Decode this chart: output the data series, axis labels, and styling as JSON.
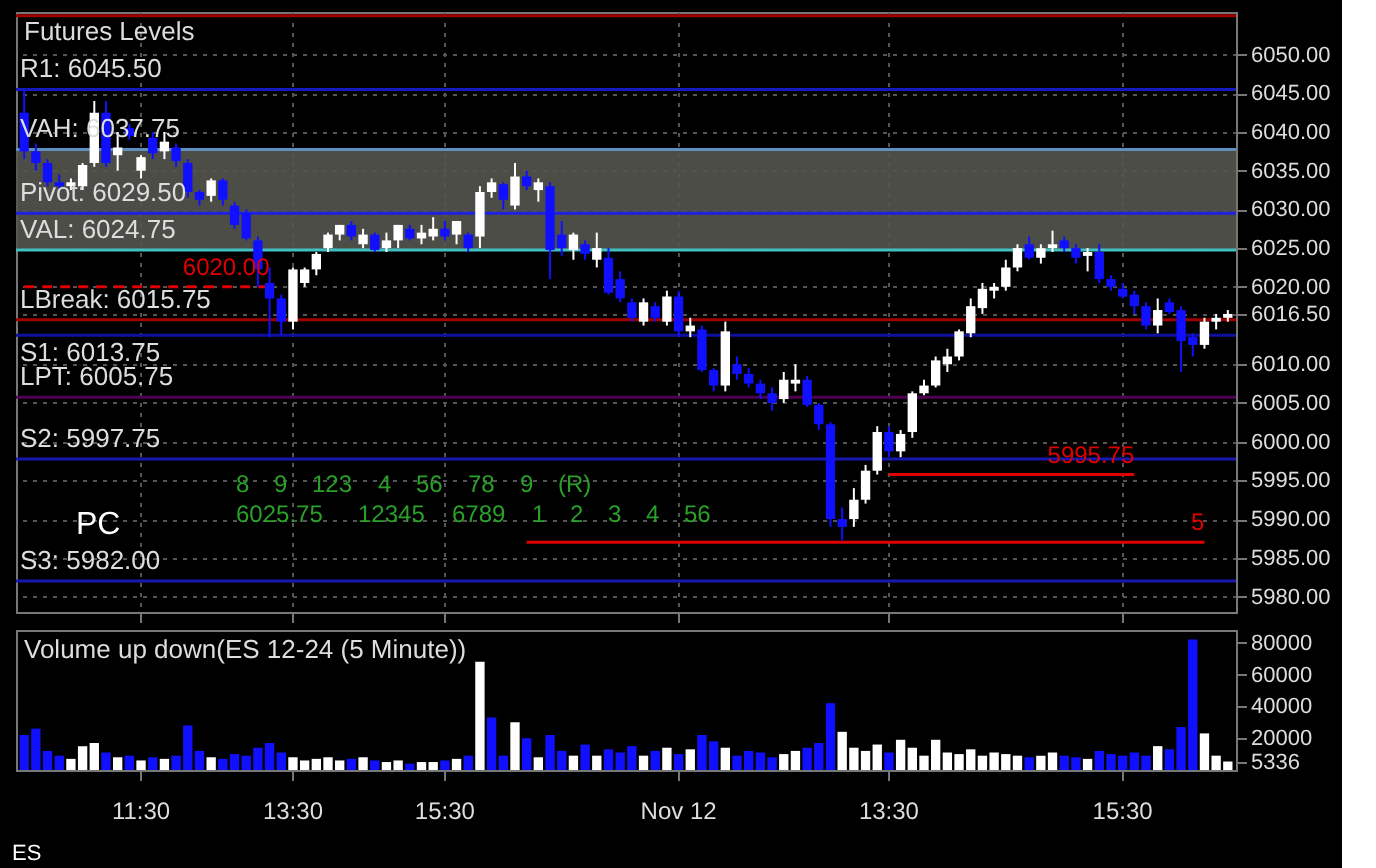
{
  "chart_data": [
    {
      "type": "candlestick",
      "title": "Futures Levels",
      "categories": [
        null,
        null,
        null,
        null,
        null,
        null,
        null,
        null,
        null,
        null,
        null,
        null,
        null,
        null,
        null,
        null,
        null,
        null,
        null,
        null,
        null,
        null,
        null,
        null,
        null,
        null,
        null,
        null,
        null,
        null,
        null,
        null,
        null,
        null,
        null,
        null,
        null,
        null,
        null,
        null,
        null,
        null,
        null,
        null,
        null,
        null,
        null,
        null,
        null,
        null,
        null,
        null,
        null,
        null,
        null,
        null,
        null,
        null,
        null,
        null,
        null,
        null,
        null,
        null,
        null,
        null,
        null,
        null,
        null,
        null,
        null,
        null,
        null,
        null,
        null,
        null,
        null,
        null,
        null,
        null,
        null,
        null,
        null,
        null,
        null,
        null,
        null,
        null,
        null,
        null,
        null,
        null,
        null,
        null,
        null,
        null,
        null,
        null,
        null,
        null,
        null,
        null,
        null,
        null
      ],
      "ohlc": [
        [
          6042.5,
          6045.5,
          6036.5,
          6037.5
        ],
        [
          6037.5,
          6038.5,
          6035,
          6036
        ],
        [
          6036,
          6036.5,
          6033,
          6033.5
        ],
        [
          6033.5,
          6034.5,
          6032.5,
          6033
        ],
        [
          6033,
          6034,
          6032.5,
          6033.5
        ],
        [
          6033,
          6036,
          6032.5,
          6035.75
        ],
        [
          6036,
          6044,
          6035.5,
          6042.5
        ],
        [
          6042.5,
          6044,
          6035.5,
          6036
        ],
        [
          6037,
          6040,
          6035,
          6038
        ],
        [
          6040.5,
          6041,
          6039,
          6039.5
        ],
        [
          6035,
          6037,
          6034,
          6036.75
        ],
        [
          6039.25,
          6040,
          6036.5,
          6037.25
        ],
        [
          6037.5,
          6040,
          6036.5,
          6038.75
        ],
        [
          6038,
          6038.5,
          6035.5,
          6036.25
        ],
        [
          6036,
          6036.5,
          6031.5,
          6032.25
        ],
        [
          6032.25,
          6032.5,
          6030.5,
          6031.25
        ],
        [
          6031.75,
          6034,
          6031,
          6033.75
        ],
        [
          6033.75,
          6034,
          6030.5,
          6031.25
        ],
        [
          6030.5,
          6031,
          6027.5,
          6028
        ],
        [
          6029.5,
          6030,
          6026,
          6026.25
        ],
        [
          6026,
          6026.5,
          6020,
          6022.25
        ],
        [
          6020.5,
          6022.5,
          6013.5,
          6018.5
        ],
        [
          6018.5,
          6019,
          6013.75,
          6015.5
        ],
        [
          6015.5,
          6022.5,
          6014.5,
          6022.25
        ],
        [
          6020.5,
          6022.5,
          6020,
          6022.25
        ],
        [
          6022.25,
          6024.5,
          6021.5,
          6024.25
        ],
        [
          6025,
          6027,
          6024.5,
          6026.75
        ],
        [
          6026.75,
          6028,
          6026,
          6028
        ],
        [
          6028,
          6028.5,
          6026,
          6026.5
        ],
        [
          6025.5,
          6027.5,
          6025,
          6026.75
        ],
        [
          6026.75,
          6027,
          6024.5,
          6024.75
        ],
        [
          6025,
          6027,
          6024.5,
          6026
        ],
        [
          6026,
          6028,
          6025,
          6028
        ],
        [
          6027.5,
          6028,
          6026,
          6026.25
        ],
        [
          6026.25,
          6028,
          6025.5,
          6027
        ],
        [
          6026.5,
          6029,
          6026,
          6027.5
        ],
        [
          6027.5,
          6028.5,
          6026,
          6026.5
        ],
        [
          6026.75,
          6028.5,
          6025.5,
          6028.5
        ],
        [
          6026.75,
          6027,
          6024.5,
          6025
        ],
        [
          6026.5,
          6033,
          6025,
          6032.25
        ],
        [
          6032.25,
          6034,
          6031.5,
          6033.5
        ],
        [
          6033.25,
          6033.5,
          6030,
          6031.25
        ],
        [
          6030.5,
          6036,
          6030,
          6034.25
        ],
        [
          6034.25,
          6035,
          6032.5,
          6033
        ],
        [
          6032.5,
          6034,
          6031,
          6033.5
        ],
        [
          6033,
          6033.5,
          6021,
          6024.75
        ],
        [
          6026.75,
          6028.5,
          6024,
          6025
        ],
        [
          6024.75,
          6027,
          6023.5,
          6026.75
        ],
        [
          6025.5,
          6026,
          6023.5,
          6024.25
        ],
        [
          6023.5,
          6027,
          6022.5,
          6025
        ],
        [
          6023.75,
          6025,
          6019,
          6019.25
        ],
        [
          6021,
          6022,
          6018,
          6018.5
        ],
        [
          6018,
          6018.5,
          6015.5,
          6016
        ],
        [
          6015.5,
          6018.5,
          6015,
          6018
        ],
        [
          6017.5,
          6018,
          6015.5,
          6016
        ],
        [
          6015.5,
          6019.5,
          6015,
          6018.75
        ],
        [
          6018.75,
          6019.5,
          6013.5,
          6014.25
        ],
        [
          6014.25,
          6016,
          6013.5,
          6015
        ],
        [
          6014.5,
          6015,
          6009,
          6009.25
        ],
        [
          6009.25,
          6009.5,
          6006.5,
          6007.25
        ],
        [
          6007.25,
          6015.5,
          6006.5,
          6014.25
        ],
        [
          6010,
          6011,
          6008,
          6008.75
        ],
        [
          6008.75,
          6009.5,
          6007,
          6007.5
        ],
        [
          6007.5,
          6008,
          6005.5,
          6006.25
        ],
        [
          6006.25,
          6007,
          6004,
          6005
        ],
        [
          6005.5,
          6009,
          6005,
          6008
        ],
        [
          6007.5,
          6010,
          6006.5,
          6008
        ],
        [
          6008,
          6008.5,
          6004.5,
          6004.75
        ],
        [
          6004.75,
          6005,
          6001.5,
          6002.25
        ],
        [
          6002.25,
          6002.5,
          5989,
          5990
        ],
        [
          5990,
          5991.5,
          5987.25,
          5989
        ],
        [
          5990,
          5994,
          5989,
          5992.5
        ],
        [
          5992.5,
          5997,
          5992,
          5996.25
        ],
        [
          5996.25,
          6002,
          5995.75,
          6001.25
        ],
        [
          6001.25,
          6002,
          5998,
          5998.75
        ],
        [
          5998.75,
          6001.5,
          5998,
          6001
        ],
        [
          6001.25,
          6006.5,
          6000.5,
          6006.25
        ],
        [
          6006.25,
          6008,
          6006,
          6007.25
        ],
        [
          6007.25,
          6011,
          6007,
          6010.5
        ],
        [
          6010,
          6012,
          6009,
          6011
        ],
        [
          6011,
          6014.5,
          6010.5,
          6014.25
        ],
        [
          6014,
          6018.5,
          6013.5,
          6017.5
        ],
        [
          6017.25,
          6020.5,
          6016.5,
          6019.75
        ],
        [
          6019.5,
          6020.5,
          6018.5,
          6020
        ],
        [
          6020,
          6023.5,
          6019.5,
          6022.5
        ],
        [
          6022.5,
          6025.5,
          6022,
          6025
        ],
        [
          6025.5,
          6026.5,
          6023.5,
          6023.75
        ],
        [
          6023.75,
          6025.5,
          6023,
          6025
        ],
        [
          6025,
          6027.25,
          6024.5,
          6025.5
        ],
        [
          6026,
          6026.5,
          6024.5,
          6025
        ],
        [
          6025,
          6025.5,
          6023,
          6023.75
        ],
        [
          6024,
          6025,
          6022,
          6024.5
        ],
        [
          6024.5,
          6025.5,
          6020.5,
          6021
        ],
        [
          6021,
          6021.5,
          6019.5,
          6020
        ],
        [
          6019.75,
          6020.5,
          6018.5,
          6018.75
        ],
        [
          6019,
          6019.5,
          6016.5,
          6017.5
        ],
        [
          6017.5,
          6018,
          6014.5,
          6015
        ],
        [
          6015,
          6018.5,
          6014,
          6017
        ],
        [
          6018,
          6018.5,
          6016.5,
          6016.75
        ],
        [
          6017,
          6017.5,
          6009,
          6013
        ],
        [
          6013.5,
          6014,
          6011,
          6012.5
        ],
        [
          6012.5,
          6016,
          6012,
          6015.5
        ],
        [
          6015.5,
          6016.5,
          6014.5,
          6016
        ],
        [
          6016,
          6017,
          6015.5,
          6016.5
        ]
      ],
      "colors": [
        "#1010ff",
        "#1010ff",
        "#1010ff",
        "#1010ff",
        "#ffffff",
        "#ffffff",
        "#ffffff",
        "#1010ff",
        "#ffffff",
        "#1010ff",
        "#ffffff",
        "#1010ff",
        "#ffffff",
        "#1010ff",
        "#1010ff",
        "#1010ff",
        "#ffffff",
        "#1010ff",
        "#1010ff",
        "#1010ff",
        "#1010ff",
        "#1010ff",
        "#1010ff",
        "#ffffff",
        "#ffffff",
        "#ffffff",
        "#ffffff",
        "#ffffff",
        "#1010ff",
        "#ffffff",
        "#1010ff",
        "#ffffff",
        "#ffffff",
        "#1010ff",
        "#ffffff",
        "#ffffff",
        "#1010ff",
        "#ffffff",
        "#1010ff",
        "#ffffff",
        "#ffffff",
        "#1010ff",
        "#ffffff",
        "#1010ff",
        "#ffffff",
        "#1010ff",
        "#1010ff",
        "#ffffff",
        "#1010ff",
        "#ffffff",
        "#1010ff",
        "#1010ff",
        "#1010ff",
        "#ffffff",
        "#1010ff",
        "#ffffff",
        "#1010ff",
        "#ffffff",
        "#1010ff",
        "#1010ff",
        "#ffffff",
        "#1010ff",
        "#1010ff",
        "#1010ff",
        "#1010ff",
        "#ffffff",
        "#ffffff",
        "#1010ff",
        "#1010ff",
        "#1010ff",
        "#1010ff",
        "#ffffff",
        "#ffffff",
        "#ffffff",
        "#1010ff",
        "#ffffff",
        "#ffffff",
        "#ffffff",
        "#ffffff",
        "#ffffff",
        "#ffffff",
        "#ffffff",
        "#ffffff",
        "#ffffff",
        "#ffffff",
        "#ffffff",
        "#1010ff",
        "#ffffff",
        "#ffffff",
        "#1010ff",
        "#1010ff",
        "#ffffff",
        "#1010ff",
        "#1010ff",
        "#1010ff",
        "#1010ff",
        "#1010ff",
        "#ffffff",
        "#1010ff",
        "#1010ff",
        "#1010ff",
        "#ffffff",
        "#ffffff",
        "#ffffff"
      ],
      "ylim": [
        5978,
        6055.5
      ],
      "yticks": [
        {
          "value": 5980,
          "label": "5980.00"
        },
        {
          "value": 5985,
          "label": "5985.00"
        },
        {
          "value": 5990,
          "label": "5990.00"
        },
        {
          "value": 5995,
          "label": "5995.00"
        },
        {
          "value": 6000,
          "label": "6000.00"
        },
        {
          "value": 6005,
          "label": "6005.00"
        },
        {
          "value": 6010,
          "label": "6010.00"
        },
        {
          "value": 6016.5,
          "label": "6016.50"
        },
        {
          "value": 6020,
          "label": "6020.00"
        },
        {
          "value": 6025,
          "label": "6025.00"
        },
        {
          "value": 6030,
          "label": "6030.00"
        },
        {
          "value": 6035,
          "label": "6035.00"
        },
        {
          "value": 6040,
          "label": "6040.00"
        },
        {
          "value": 6045,
          "label": "6045.00"
        },
        {
          "value": 6050,
          "label": "6050.00"
        }
      ],
      "grid": true,
      "tick_labels": "y",
      "bands": [
        {
          "axis": "y",
          "from": 6024.75,
          "to": 6037.75,
          "color": "#55554f"
        }
      ],
      "ref_lines": [
        {
          "axis": "y",
          "value": 6055,
          "color": "#a00000"
        },
        {
          "axis": "y",
          "value": 6045.5,
          "label": "R1: 6045.50",
          "color": "#1818c0"
        },
        {
          "axis": "y",
          "value": 6037.75,
          "label": "VAH: 6037.75",
          "color": "#5f8fbf"
        },
        {
          "axis": "y",
          "value": 6029.5,
          "label": "Pivot: 6029.50",
          "color": "#2020e0"
        },
        {
          "axis": "y",
          "value": 6024.75,
          "label": "VAL: 6024.75",
          "color": "#40c0c0"
        },
        {
          "axis": "y",
          "value": 6015.75,
          "label": "LBreak: 6015.75",
          "color": "#a00000"
        },
        {
          "axis": "y",
          "value": 6013.75,
          "label": "S1: 6013.75",
          "color": "#1010a0"
        },
        {
          "axis": "y",
          "value": 6005.75,
          "label": "LPT: 6005.75",
          "color": "#500050"
        },
        {
          "axis": "y",
          "value": 5997.75,
          "label": "S2: 5997.75",
          "color": "#1818b0"
        },
        {
          "axis": "y",
          "value": 5982,
          "label": "S3: 5982.00",
          "color": "#1818b0"
        }
      ],
      "series": [
        {
          "type": "line",
          "name": "6020.00",
          "color": "#e00000",
          "line_style": "dashed",
          "values": [
            6020,
            6020,
            6020,
            6020,
            6020,
            6020,
            6020,
            6020,
            6020,
            6020,
            6020,
            6020,
            6020,
            6020,
            6020,
            6020,
            6020,
            6020,
            6020,
            6020,
            6020,
            6020,
            null,
            null,
            null,
            null,
            null,
            null,
            null,
            null,
            null,
            null,
            null,
            null,
            null,
            null,
            null,
            null,
            null,
            null,
            null,
            null,
            null,
            null,
            null,
            null,
            null,
            null,
            null,
            null,
            null,
            null,
            null,
            null,
            null,
            null,
            null,
            null,
            null,
            null,
            null,
            null,
            null,
            null,
            null,
            null,
            null,
            null,
            null,
            null,
            null,
            null,
            null,
            null,
            null,
            null,
            null,
            null,
            null,
            null,
            null,
            null,
            null,
            null,
            null,
            null,
            null,
            null,
            null,
            null,
            null,
            null,
            null,
            null,
            null,
            null,
            null,
            null,
            null,
            null,
            null,
            null,
            null,
            null
          ]
        },
        {
          "type": "line",
          "name": "5995.75",
          "color": "#e00000",
          "values": [
            null,
            null,
            null,
            null,
            null,
            null,
            null,
            null,
            null,
            null,
            null,
            null,
            null,
            null,
            null,
            null,
            null,
            null,
            null,
            null,
            null,
            null,
            null,
            null,
            null,
            null,
            null,
            null,
            null,
            null,
            null,
            null,
            null,
            null,
            null,
            null,
            null,
            null,
            null,
            null,
            null,
            null,
            null,
            null,
            null,
            null,
            null,
            null,
            null,
            null,
            null,
            null,
            null,
            null,
            null,
            null,
            null,
            null,
            null,
            null,
            null,
            null,
            null,
            null,
            null,
            null,
            null,
            null,
            null,
            null,
            null,
            null,
            null,
            null,
            5995.75,
            5995.75,
            5995.75,
            5995.75,
            5995.75,
            5995.75,
            5995.75,
            5995.75,
            5995.75,
            5995.75,
            5995.75,
            5995.75,
            5995.75,
            5995.75,
            5995.75,
            5995.75,
            5995.75,
            5995.75,
            5995.75,
            5995.75,
            5995.75,
            5995.75,
            null,
            null,
            null,
            null,
            null,
            null,
            null,
            null
          ]
        },
        {
          "type": "line",
          "name": "5",
          "color": "#e00000",
          "values": [
            null,
            null,
            null,
            null,
            null,
            null,
            null,
            null,
            null,
            null,
            null,
            null,
            null,
            null,
            null,
            null,
            null,
            null,
            null,
            null,
            null,
            null,
            null,
            null,
            null,
            null,
            null,
            null,
            null,
            null,
            null,
            null,
            null,
            null,
            null,
            null,
            null,
            null,
            null,
            null,
            null,
            null,
            null,
            5987,
            5987,
            5987,
            5987,
            5987,
            5987,
            5987,
            5987,
            5987,
            5987,
            5987,
            5987,
            5987,
            5987,
            5987,
            5987,
            5987,
            5987,
            5987,
            5987,
            5987,
            5987,
            5987,
            5987,
            5987,
            5987,
            5987,
            5987,
            5987,
            5987,
            5987,
            5987,
            5987,
            5987,
            5987,
            5987,
            5987,
            5987,
            5987,
            5987,
            5987,
            5987,
            5987,
            5987,
            5987,
            5987,
            5987,
            5987,
            5987,
            5987,
            5987,
            5987,
            5987,
            5987,
            5987,
            5987,
            5987,
            5987,
            5987,
            null,
            null
          ]
        }
      ],
      "annotations": [
        "PC",
        "8",
        "9",
        "123",
        "4",
        "56",
        "78",
        "9",
        "(R)",
        "6025.75",
        "12345",
        "6789",
        "1",
        "2",
        "3",
        "4",
        "56"
      ]
    },
    {
      "type": "bar",
      "title": "Volume up down(ES 12-24 (5 Minute))",
      "categories": [
        null,
        null,
        null,
        null,
        null,
        null,
        null,
        null,
        null,
        null,
        "11:30",
        null,
        null,
        null,
        null,
        null,
        null,
        null,
        null,
        null,
        null,
        null,
        null,
        "13:30",
        null,
        null,
        null,
        null,
        null,
        null,
        null,
        null,
        null,
        null,
        null,
        null,
        "15:30",
        null,
        null,
        null,
        null,
        null,
        null,
        null,
        null,
        null,
        null,
        null,
        null,
        null,
        null,
        null,
        null,
        null,
        null,
        null,
        "Nov 12",
        null,
        null,
        null,
        null,
        null,
        null,
        null,
        null,
        null,
        null,
        null,
        null,
        null,
        null,
        null,
        null,
        null,
        "13:30",
        null,
        null,
        null,
        null,
        null,
        null,
        null,
        null,
        null,
        null,
        null,
        null,
        null,
        null,
        null,
        null,
        null,
        null,
        null,
        "15:30",
        null,
        null,
        null,
        null,
        null,
        null,
        null,
        null,
        null
      ],
      "values": [
        22000,
        26000,
        12000,
        9000,
        7000,
        15000,
        17000,
        11000,
        8000,
        9000,
        6000,
        8000,
        7000,
        9000,
        28000,
        12000,
        8000,
        7000,
        10000,
        9000,
        14000,
        17000,
        11000,
        8000,
        6000,
        7000,
        8000,
        6000,
        7000,
        8000,
        6000,
        5000,
        6000,
        4000,
        5000,
        5000,
        6000,
        7000,
        9000,
        68000,
        33000,
        9000,
        30000,
        20000,
        8000,
        22000,
        12000,
        9000,
        16000,
        9000,
        13000,
        11000,
        15000,
        9000,
        12000,
        14000,
        10000,
        13000,
        22000,
        18000,
        14000,
        9000,
        12000,
        11000,
        8000,
        10000,
        12000,
        14000,
        17000,
        42000,
        24000,
        14000,
        12000,
        16000,
        11000,
        19000,
        14000,
        9000,
        19000,
        11000,
        10000,
        13000,
        9000,
        11000,
        10000,
        9000,
        8000,
        9000,
        11000,
        9000,
        8000,
        7000,
        12000,
        10000,
        9000,
        11000,
        9000,
        15000,
        13000,
        27000,
        82000,
        23000,
        9000,
        5336
      ],
      "colors": [
        "#1010ff",
        "#1010ff",
        "#1010ff",
        "#1010ff",
        "#ffffff",
        "#ffffff",
        "#ffffff",
        "#1010ff",
        "#ffffff",
        "#1010ff",
        "#ffffff",
        "#1010ff",
        "#ffffff",
        "#1010ff",
        "#1010ff",
        "#1010ff",
        "#ffffff",
        "#1010ff",
        "#1010ff",
        "#1010ff",
        "#1010ff",
        "#1010ff",
        "#1010ff",
        "#ffffff",
        "#ffffff",
        "#ffffff",
        "#ffffff",
        "#ffffff",
        "#1010ff",
        "#ffffff",
        "#1010ff",
        "#ffffff",
        "#ffffff",
        "#1010ff",
        "#ffffff",
        "#ffffff",
        "#1010ff",
        "#ffffff",
        "#1010ff",
        "#ffffff",
        "#1010ff",
        "#1010ff",
        "#ffffff",
        "#1010ff",
        "#ffffff",
        "#1010ff",
        "#1010ff",
        "#ffffff",
        "#1010ff",
        "#ffffff",
        "#1010ff",
        "#1010ff",
        "#1010ff",
        "#ffffff",
        "#1010ff",
        "#ffffff",
        "#1010ff",
        "#ffffff",
        "#1010ff",
        "#1010ff",
        "#ffffff",
        "#1010ff",
        "#1010ff",
        "#1010ff",
        "#1010ff",
        "#ffffff",
        "#ffffff",
        "#1010ff",
        "#1010ff",
        "#1010ff",
        "#ffffff",
        "#ffffff",
        "#ffffff",
        "#ffffff",
        "#1010ff",
        "#ffffff",
        "#ffffff",
        "#ffffff",
        "#ffffff",
        "#ffffff",
        "#ffffff",
        "#ffffff",
        "#ffffff",
        "#ffffff",
        "#ffffff",
        "#ffffff",
        "#1010ff",
        "#ffffff",
        "#ffffff",
        "#1010ff",
        "#1010ff",
        "#ffffff",
        "#1010ff",
        "#1010ff",
        "#1010ff",
        "#1010ff",
        "#1010ff",
        "#ffffff",
        "#1010ff",
        "#1010ff",
        "#1010ff",
        "#ffffff",
        "#ffffff",
        "#ffffff"
      ],
      "ylim": [
        0,
        88000
      ],
      "yticks": [
        {
          "value": 5336,
          "label": "5336"
        },
        20000,
        40000,
        60000,
        80000
      ],
      "annotations": [
        "ES"
      ]
    }
  ]
}
